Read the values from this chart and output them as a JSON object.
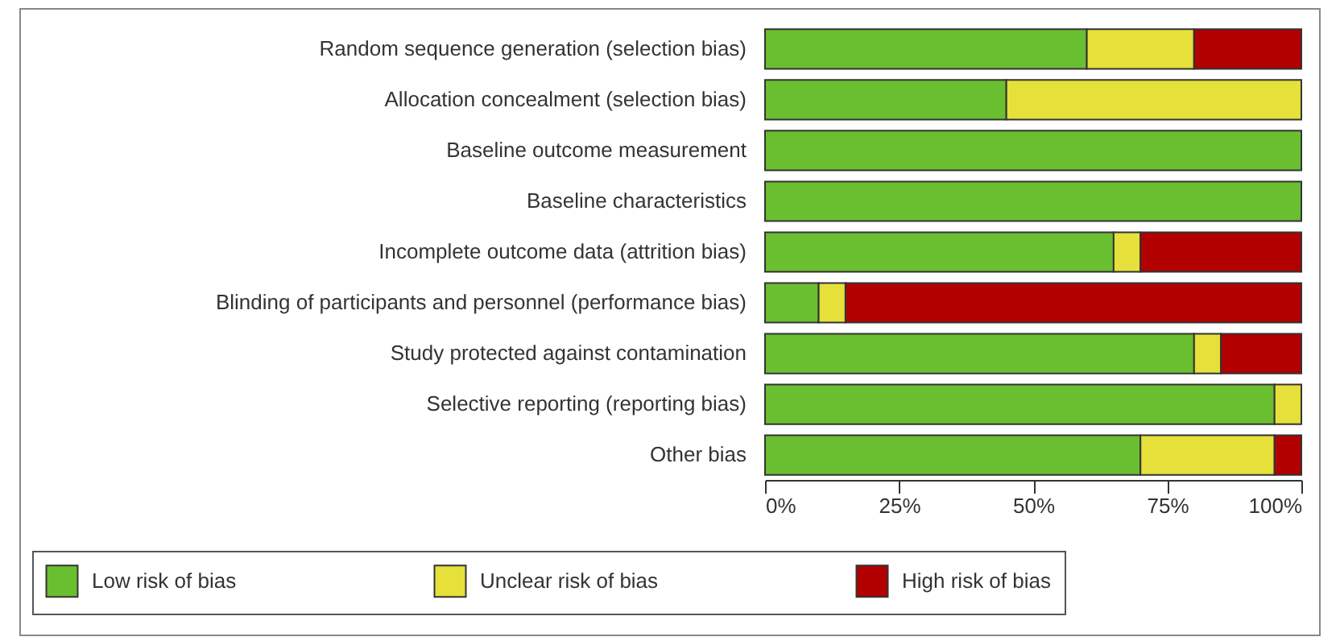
{
  "chart_data": {
    "type": "bar",
    "orientation": "horizontal",
    "stacked": true,
    "categories": [
      "Random sequence generation (selection bias)",
      "Allocation concealment (selection bias)",
      "Baseline outcome measurement",
      "Baseline characteristics",
      "Incomplete outcome data (attrition bias)",
      "Blinding of participants and personnel (performance bias)",
      "Study protected against contamination",
      "Selective reporting (reporting bias)",
      "Other bias"
    ],
    "series": [
      {
        "name": "Low risk of bias",
        "color": "#6abf30",
        "values": [
          60,
          45,
          100,
          100,
          65,
          10,
          80,
          95,
          70
        ]
      },
      {
        "name": "Unclear risk of bias",
        "color": "#e5e03a",
        "values": [
          20,
          55,
          0,
          0,
          5,
          5,
          5,
          5,
          25
        ]
      },
      {
        "name": "High risk of bias",
        "color": "#b20000",
        "values": [
          20,
          0,
          0,
          0,
          30,
          85,
          15,
          0,
          5
        ]
      }
    ],
    "xlim": [
      0,
      100
    ],
    "xticks": [
      {
        "value": 0,
        "label": "0%"
      },
      {
        "value": 25,
        "label": "25%"
      },
      {
        "value": 50,
        "label": "50%"
      },
      {
        "value": 75,
        "label": "75%"
      },
      {
        "value": 100,
        "label": "100%"
      }
    ],
    "grid": false,
    "legend": "bottom"
  }
}
